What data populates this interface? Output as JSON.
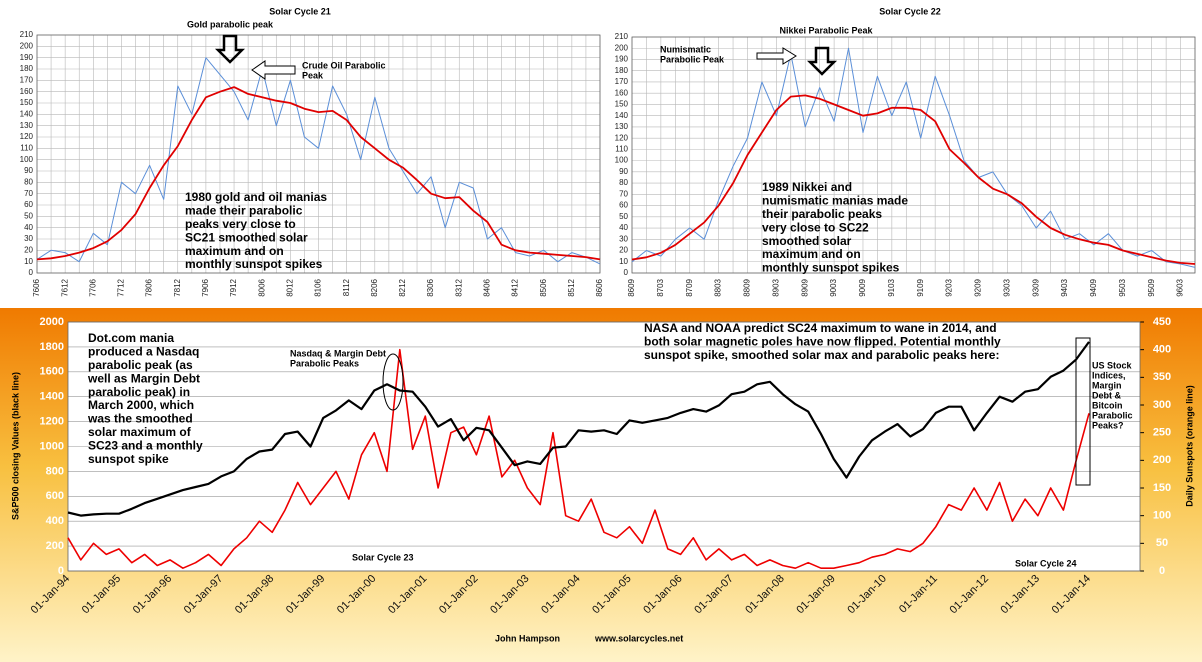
{
  "chart_data": [
    {
      "type": "line",
      "title": "Solar Cycle 21",
      "categories": [
        "7606",
        null,
        "7612",
        null,
        "7706",
        null,
        "7712",
        null,
        "7806",
        null,
        "7812",
        null,
        "7906",
        null,
        "7912",
        null,
        "8006",
        null,
        "8012",
        null,
        "8106",
        null,
        "8112",
        null,
        "8206",
        null,
        "8212",
        null,
        "8306",
        null,
        "8312",
        null,
        "8406",
        null,
        "8412",
        null,
        "8506",
        null,
        "8512",
        null,
        "8606"
      ],
      "series": [
        {
          "color": "#5b8fd8",
          "values": [
            12,
            20,
            18,
            10,
            35,
            25,
            80,
            70,
            95,
            65,
            165,
            140,
            190,
            175,
            160,
            135,
            180,
            130,
            170,
            120,
            110,
            165,
            140,
            100,
            155,
            110,
            90,
            70,
            85,
            40,
            80,
            75,
            30,
            40,
            18,
            15,
            20,
            10,
            18,
            14,
            8
          ]
        },
        {
          "color": "#e00000",
          "values": [
            12,
            13,
            15,
            18,
            22,
            28,
            38,
            52,
            75,
            95,
            112,
            135,
            155,
            160,
            164,
            158,
            155,
            152,
            150,
            145,
            142,
            143,
            135,
            120,
            110,
            100,
            93,
            82,
            70,
            66,
            67,
            55,
            45,
            25,
            20,
            18,
            17,
            16,
            15,
            14,
            12
          ]
        }
      ],
      "ylim": [
        0,
        210
      ],
      "yticks": [
        0,
        10,
        20,
        30,
        40,
        50,
        60,
        70,
        80,
        90,
        100,
        110,
        120,
        130,
        140,
        150,
        160,
        170,
        180,
        190,
        200,
        210
      ],
      "grid": true,
      "annotations": [
        {
          "lines": [
            "Gold parabolic peak"
          ]
        },
        {
          "lines": [
            "Crude Oil Parabolic",
            "Peak"
          ]
        },
        {
          "lines": [
            "1980 gold and oil manias",
            "made their parabolic",
            "peaks very close to",
            "SC21 smoothed solar",
            "maximum and on",
            "monthly sunspot spikes"
          ]
        }
      ]
    },
    {
      "type": "line",
      "title": "Solar Cycle 22",
      "categories": [
        "8609",
        null,
        "8703",
        null,
        "8709",
        null,
        "8803",
        null,
        "8809",
        null,
        "8903",
        null,
        "8909",
        null,
        "9003",
        null,
        "9009",
        null,
        "9103",
        null,
        "9109",
        null,
        "9203",
        null,
        "9209",
        null,
        "9303",
        null,
        "9309",
        null,
        "9403",
        null,
        "9409",
        null,
        "9503",
        null,
        "9509",
        null,
        "9603",
        null
      ],
      "series": [
        {
          "color": "#5b8fd8",
          "values": [
            10,
            20,
            15,
            30,
            40,
            30,
            65,
            95,
            120,
            170,
            140,
            195,
            130,
            165,
            135,
            200,
            125,
            175,
            140,
            170,
            120,
            175,
            140,
            100,
            85,
            90,
            70,
            60,
            40,
            55,
            30,
            35,
            25,
            35,
            20,
            15,
            20,
            10,
            8,
            5
          ]
        },
        {
          "color": "#e00000",
          "values": [
            12,
            14,
            18,
            25,
            35,
            45,
            60,
            80,
            105,
            125,
            145,
            157,
            158,
            155,
            150,
            145,
            140,
            142,
            147,
            147,
            145,
            135,
            110,
            98,
            85,
            75,
            70,
            62,
            50,
            40,
            34,
            30,
            27,
            25,
            20,
            17,
            14,
            11,
            9,
            8
          ]
        }
      ],
      "ylim": [
        0,
        210
      ],
      "yticks": [
        0,
        10,
        20,
        30,
        40,
        50,
        60,
        70,
        80,
        90,
        100,
        110,
        120,
        130,
        140,
        150,
        160,
        170,
        180,
        190,
        200,
        210
      ],
      "grid": true,
      "annotations": [
        {
          "lines": [
            "Nikkei Parabolic Peak"
          ]
        },
        {
          "lines": [
            "Numismatic",
            "Parabolic Peak"
          ]
        },
        {
          "lines": [
            "1989 Nikkei and",
            "numismatic manias made",
            "their parabolic peaks",
            "very close to SC22",
            "smoothed solar",
            "maximum and on",
            "monthly sunspot spikes"
          ]
        }
      ]
    },
    {
      "type": "line",
      "categories": [
        "01-Jan-94",
        null,
        null,
        null,
        "01-Jan-95",
        null,
        null,
        null,
        "01-Jan-96",
        null,
        null,
        null,
        "01-Jan-97",
        null,
        null,
        null,
        "01-Jan-98",
        null,
        null,
        null,
        "01-Jan-99",
        null,
        null,
        null,
        "01-Jan-00",
        null,
        null,
        null,
        "01-Jan-01",
        null,
        null,
        null,
        "01-Jan-02",
        null,
        null,
        null,
        "01-Jan-03",
        null,
        null,
        null,
        "01-Jan-04",
        null,
        null,
        null,
        "01-Jan-05",
        null,
        null,
        null,
        "01-Jan-06",
        null,
        null,
        null,
        "01-Jan-07",
        null,
        null,
        null,
        "01-Jan-08",
        null,
        null,
        null,
        "01-Jan-09",
        null,
        null,
        null,
        "01-Jan-10",
        null,
        null,
        null,
        "01-Jan-11",
        null,
        null,
        null,
        "01-Jan-12",
        null,
        null,
        null,
        "01-Jan-13",
        null,
        null,
        null,
        "01-Jan-14",
        null,
        null,
        null,
        null
      ],
      "series": [
        {
          "color": "#ee0000",
          "axis": "y2",
          "values": [
            60,
            20,
            50,
            30,
            40,
            15,
            30,
            10,
            20,
            5,
            15,
            30,
            10,
            40,
            60,
            90,
            70,
            110,
            160,
            120,
            150,
            180,
            130,
            210,
            250,
            180,
            400,
            220,
            280,
            150,
            250,
            260,
            210,
            280,
            170,
            200,
            150,
            120,
            250,
            100,
            90,
            130,
            70,
            60,
            80,
            50,
            110,
            40,
            30,
            60,
            20,
            40,
            20,
            30,
            10,
            20,
            10,
            5,
            15,
            5,
            5,
            10,
            15,
            25,
            30,
            40,
            35,
            50,
            80,
            120,
            110,
            150,
            110,
            160,
            90,
            130,
            100,
            150,
            110,
            200,
            285,
            null,
            null,
            null,
            null
          ]
        },
        {
          "color": "#000000",
          "values": [
            470,
            445,
            455,
            460,
            460,
            500,
            545,
            580,
            615,
            650,
            675,
            700,
            760,
            800,
            900,
            960,
            975,
            1100,
            1120,
            1000,
            1230,
            1290,
            1370,
            1300,
            1450,
            1500,
            1450,
            1440,
            1320,
            1160,
            1220,
            1050,
            1150,
            1130,
            990,
            850,
            880,
            860,
            990,
            1000,
            1130,
            1120,
            1130,
            1100,
            1210,
            1190,
            1210,
            1230,
            1270,
            1300,
            1280,
            1330,
            1420,
            1440,
            1500,
            1520,
            1420,
            1340,
            1280,
            1100,
            900,
            750,
            920,
            1050,
            1120,
            1180,
            1080,
            1140,
            1270,
            1320,
            1320,
            1130,
            1270,
            1400,
            1360,
            1440,
            1460,
            1560,
            1610,
            1700,
            1840,
            null,
            null,
            null,
            null
          ]
        }
      ],
      "ylim": [
        0,
        2000
      ],
      "yticks": [
        0,
        200,
        400,
        600,
        800,
        1000,
        1200,
        1400,
        1600,
        1800,
        2000
      ],
      "y2lim": [
        0,
        450
      ],
      "y2ticks": [
        0,
        50,
        100,
        150,
        200,
        250,
        300,
        350,
        400,
        450
      ],
      "grid": true,
      "ylabel": "S&P500 closing Values (black line)",
      "y2label": "Daily Sunspots (orange line)",
      "credit": "John Hampson",
      "source": "www.solarcycles.net",
      "annotations": [
        {
          "lines": [
            "Dot.com mania",
            "produced a Nasdaq",
            "parabolic peak (as",
            "well as Margin Debt",
            "parabolic peak) in",
            "March 2000, which",
            "was the smoothed",
            "solar maximum of",
            "SC23 and a monthly",
            "sunspot spike"
          ]
        },
        {
          "lines": [
            "Nasdaq & Margin Debt",
            "Parabolic Peaks"
          ]
        },
        {
          "lines": [
            "Solar Cycle 23"
          ]
        },
        {
          "lines": [
            "NASA and NOAA predict SC24 maximum to wane in 2014, and",
            "both solar magnetic poles have now flipped. Potential monthly",
            "sunspot spike, smoothed solar max and parabolic peaks here:"
          ]
        },
        {
          "lines": [
            "US Stock",
            "Indices,",
            "Margin",
            "Debt &",
            "Bitcoin",
            "Parabolic",
            "Peaks?"
          ]
        },
        {
          "lines": [
            "Solar Cycle 24"
          ]
        }
      ]
    }
  ]
}
